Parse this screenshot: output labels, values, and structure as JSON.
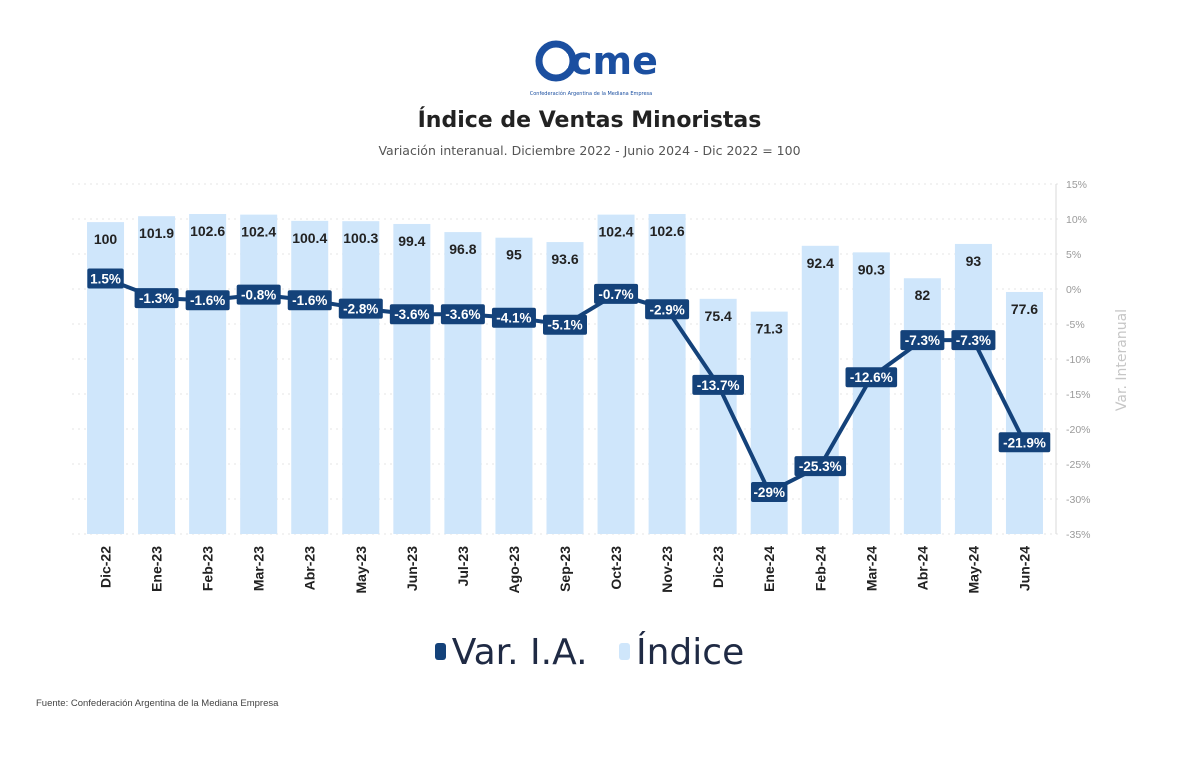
{
  "logo": {
    "text": "cme",
    "tagline": "Confederación Argentina de la Mediana Empresa"
  },
  "header": {
    "title": "Índice de Ventas Minoristas",
    "subtitle": "Variación interanual. Diciembre 2022 - Junio 2024 - Dic 2022 = 100"
  },
  "legend": {
    "line_label": "Var. I.A.",
    "bar_label": "Índice"
  },
  "source": "Fuente: Confederación Argentina de la Mediana Empresa",
  "colors": {
    "bar": "#cfe6fb",
    "line": "#14427a",
    "brand": "#1b4fa0",
    "grid": "#e6e6e6"
  },
  "chart_data": {
    "type": "bar",
    "title": "Índice de Ventas Minoristas",
    "subtitle": "Variación interanual. Diciembre 2022 - Junio 2024 - Dic 2022 = 100",
    "categories": [
      "Dic-22",
      "Ene-23",
      "Feb-23",
      "Mar-23",
      "Abr-23",
      "May-23",
      "Jun-23",
      "Jul-23",
      "Ago-23",
      "Sep-23",
      "Oct-23",
      "Nov-23",
      "Dic-23",
      "Ene-24",
      "Feb-24",
      "Mar-24",
      "Abr-24",
      "May-24",
      "Jun-24"
    ],
    "series": [
      {
        "name": "Índice",
        "type": "bar",
        "axis": "left",
        "values": [
          100,
          101.9,
          102.6,
          102.4,
          100.4,
          100.3,
          99.4,
          96.8,
          95,
          93.6,
          102.4,
          102.6,
          75.4,
          71.3,
          92.4,
          90.3,
          82,
          93,
          77.6
        ],
        "labels": [
          "100",
          "101.9",
          "102.6",
          "102.4",
          "100.4",
          "100.3",
          "99.4",
          "96.8",
          "95",
          "93.6",
          "102.4",
          "102.6",
          "75.4",
          "71.3",
          "92.4",
          "90.3",
          "82",
          "93",
          "77.6"
        ]
      },
      {
        "name": "Var. I.A.",
        "type": "line",
        "axis": "right",
        "values": [
          1.5,
          -1.3,
          -1.6,
          -0.8,
          -1.6,
          -2.8,
          -3.6,
          -3.6,
          -4.1,
          -5.1,
          -0.7,
          -2.9,
          -13.7,
          -29,
          -25.3,
          -12.6,
          -7.3,
          -7.3,
          -21.9
        ],
        "labels": [
          "1.5%",
          "-1.3%",
          "-1.6%",
          "-0.8%",
          "-1.6%",
          "-2.8%",
          "-3.6%",
          "-3.6%",
          "-4.1%",
          "-5.1%",
          "-0.7%",
          "-2.9%",
          "-13.7%",
          "-29%",
          "-25.3%",
          "-12.6%",
          "-7.3%",
          "-7.3%",
          "-21.9%"
        ]
      }
    ],
    "y_right": {
      "label": "Var. Interanual",
      "ylim": [
        -35,
        15
      ],
      "ticks": [
        15,
        10,
        5,
        0,
        -5,
        -10,
        -15,
        -20,
        -25,
        -30,
        -35
      ],
      "tick_labels": [
        "15%",
        "10%",
        "5%",
        "0%",
        "-5%",
        "-10%",
        "-15%",
        "-20%",
        "-25%",
        "-30%",
        "-35%"
      ]
    },
    "y_left": {
      "ylim": [
        0,
        110
      ]
    },
    "grid": true,
    "legend_position": "bottom"
  }
}
